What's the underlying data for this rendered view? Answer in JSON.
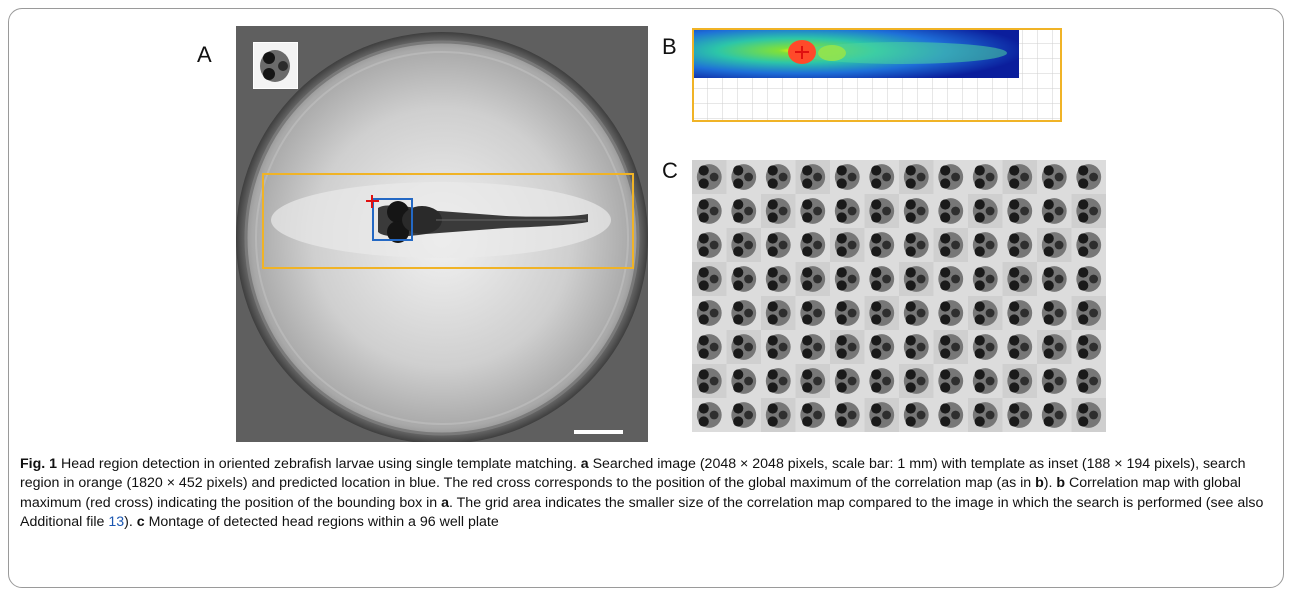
{
  "labels": {
    "a": "A",
    "b": "B",
    "c": "C"
  },
  "colors": {
    "search_region": "#f0b326",
    "predicted_box": "#2368c4",
    "max_cross": "#e01010",
    "link": "#1a56b0"
  },
  "montage": {
    "rows": 8,
    "cols": 12
  },
  "caption": {
    "fig_label": "Fig. 1",
    "title": " Head region detection in oriented zebrafish larvae using single template matching. ",
    "a_label": "a",
    "a_text": " Searched image (2048 × 2048 pixels, scale bar: 1 mm) with template as inset (188 × 194 pixels), search region in orange (1820 × 452 pixels) and predicted location in blue. The red cross corresponds to the position of the global maximum of the correlation map (as in ",
    "a_ref": "b",
    "a_end": "). ",
    "b_label": "b",
    "b_text": " Correlation map with global maximum (red cross) indicating the position of the bounding box in ",
    "b_ref": "a",
    "b_text2": ". The grid area indicates the smaller size of the correlation map compared to the image in which the search is performed (see also Additional file ",
    "b_link": "13",
    "b_end": "). ",
    "c_label": "c",
    "c_text": " Montage of detected head regions within a 96 well plate"
  }
}
